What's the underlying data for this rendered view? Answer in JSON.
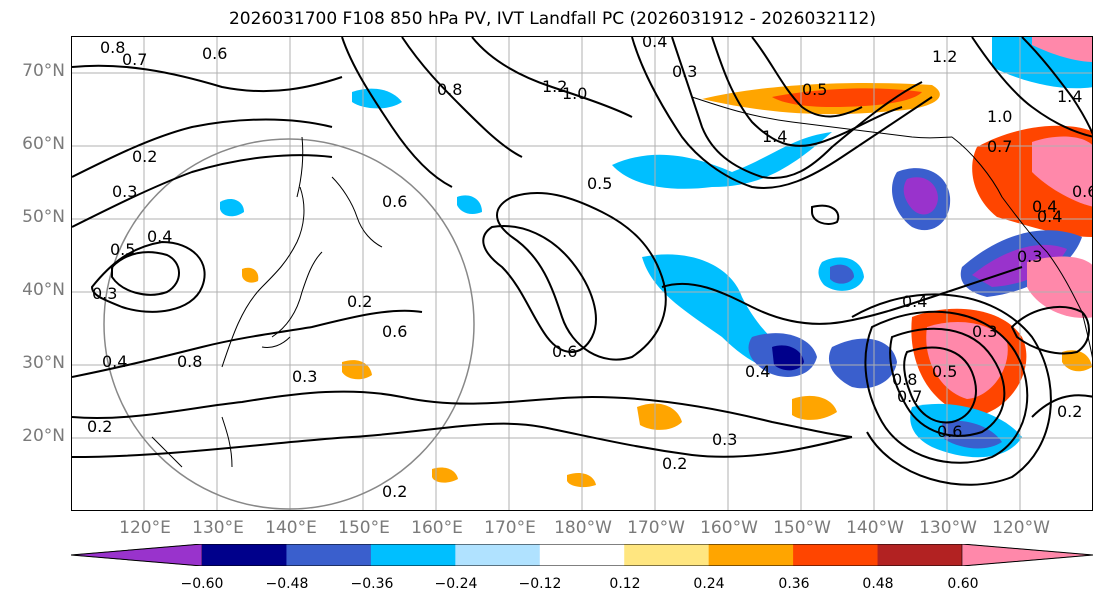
{
  "title": "2026031700 F108 850 hPa PV, IVT Landfall PC (2026031912 - 2026032112)",
  "map": {
    "lat_labels": [
      "70°N",
      "60°N",
      "50°N",
      "40°N",
      "30°N",
      "20°N"
    ],
    "lon_labels": [
      "120°E",
      "130°E",
      "140°E",
      "150°E",
      "160°E",
      "170°E",
      "180°W",
      "170°W",
      "160°W",
      "150°W",
      "140°W",
      "130°W",
      "120°W"
    ],
    "contour_labels": [
      "0.8",
      "0.7",
      "0.6",
      "0.5",
      "0.4",
      "0.3",
      "0.2",
      "1.2",
      "1.0",
      "0.8",
      "1.4",
      "0.6",
      "0.5",
      "0.4",
      "0.3",
      "0.2",
      "0.2",
      "0.3",
      "0.6",
      "0.4",
      "0.3",
      "0.2",
      "0.5",
      "0.4",
      "0.3",
      "0.6",
      "0.8",
      "0.7",
      "0.6",
      "0.5",
      "0.4",
      "0.3",
      "0.2",
      "0.4",
      "0.3",
      "0.2",
      "0.6",
      "0.4",
      "1.4",
      "1.2",
      "1.0",
      "0.8",
      "0.7"
    ],
    "grid": true,
    "projection_circle": true
  },
  "colorbar": {
    "ticks": [
      "−0.60",
      "−0.48",
      "−0.36",
      "−0.24",
      "−0.12",
      "0.12",
      "0.24",
      "0.36",
      "0.48",
      "0.60"
    ],
    "colors": [
      "#9933cc",
      "#00008b",
      "#3a5fcd",
      "#00bfff",
      "#b0e2ff",
      "#ffffff",
      "#ffe680",
      "#ffa500",
      "#ff4500",
      "#b22222",
      "#ff88aa"
    ]
  }
}
